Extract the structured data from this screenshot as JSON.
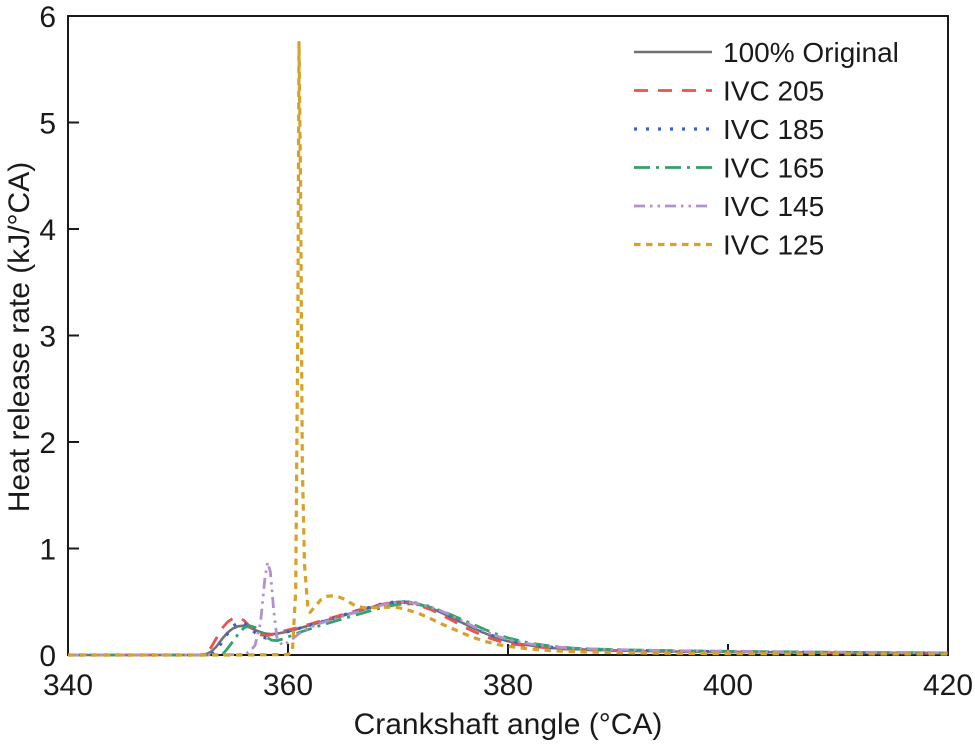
{
  "accent_colors": {
    "axis": "#1a1a1a",
    "background": "#ffffff"
  },
  "chart_data": {
    "type": "line",
    "title": "",
    "xlabel": "Crankshaft angle (°CA)",
    "ylabel": "Heat release rate (kJ/°CA)",
    "xlim": [
      340,
      420
    ],
    "ylim": [
      0,
      6
    ],
    "xticks": [
      340,
      360,
      380,
      400,
      420
    ],
    "yticks": [
      0,
      1,
      2,
      3,
      4,
      5,
      6
    ],
    "grid": false,
    "legend_position": "upper right",
    "series": [
      {
        "name": "100% Original",
        "color": "#6e7176",
        "style": "solid",
        "points": [
          [
            340,
            0
          ],
          [
            346,
            0
          ],
          [
            350,
            0
          ],
          [
            352,
            0
          ],
          [
            352.6,
            0.01
          ],
          [
            353,
            0.03
          ],
          [
            353.5,
            0.08
          ],
          [
            354,
            0.15
          ],
          [
            354.5,
            0.21
          ],
          [
            355,
            0.25
          ],
          [
            355.5,
            0.27
          ],
          [
            356,
            0.275
          ],
          [
            356.5,
            0.26
          ],
          [
            357,
            0.235
          ],
          [
            357.5,
            0.215
          ],
          [
            358,
            0.2
          ],
          [
            358.5,
            0.195
          ],
          [
            359,
            0.2
          ],
          [
            359.5,
            0.21
          ],
          [
            360,
            0.22
          ],
          [
            361,
            0.25
          ],
          [
            362,
            0.28
          ],
          [
            363,
            0.31
          ],
          [
            364,
            0.34
          ],
          [
            365,
            0.37
          ],
          [
            366,
            0.4
          ],
          [
            367,
            0.43
          ],
          [
            368,
            0.46
          ],
          [
            369,
            0.48
          ],
          [
            370,
            0.5
          ],
          [
            371,
            0.5
          ],
          [
            372,
            0.475
          ],
          [
            373,
            0.44
          ],
          [
            374,
            0.395
          ],
          [
            375,
            0.345
          ],
          [
            376,
            0.295
          ],
          [
            377,
            0.245
          ],
          [
            378,
            0.2
          ],
          [
            379,
            0.16
          ],
          [
            380,
            0.13
          ],
          [
            381,
            0.105
          ],
          [
            382,
            0.09
          ],
          [
            383,
            0.075
          ],
          [
            384,
            0.065
          ],
          [
            385,
            0.06
          ],
          [
            386,
            0.055
          ],
          [
            388,
            0.048
          ],
          [
            390,
            0.042
          ],
          [
            392,
            0.038
          ],
          [
            395,
            0.033
          ],
          [
            398,
            0.03
          ],
          [
            400,
            0.03
          ],
          [
            404,
            0.026
          ],
          [
            408,
            0.023
          ],
          [
            412,
            0.021
          ],
          [
            416,
            0.02
          ],
          [
            420,
            0.018
          ]
        ]
      },
      {
        "name": "IVC 205",
        "color": "#e8544e",
        "style": "dashed",
        "points": [
          [
            340,
            0
          ],
          [
            346,
            0
          ],
          [
            350,
            0
          ],
          [
            352,
            0
          ],
          [
            352.5,
            0.02
          ],
          [
            353,
            0.07
          ],
          [
            353.5,
            0.16
          ],
          [
            354,
            0.25
          ],
          [
            354.5,
            0.31
          ],
          [
            355,
            0.345
          ],
          [
            355.5,
            0.35
          ],
          [
            356,
            0.325
          ],
          [
            356.5,
            0.27
          ],
          [
            357,
            0.22
          ],
          [
            357.5,
            0.19
          ],
          [
            358,
            0.18
          ],
          [
            358.5,
            0.19
          ],
          [
            359,
            0.21
          ],
          [
            360,
            0.235
          ],
          [
            361,
            0.26
          ],
          [
            362,
            0.29
          ],
          [
            363,
            0.32
          ],
          [
            364,
            0.35
          ],
          [
            365,
            0.38
          ],
          [
            366,
            0.41
          ],
          [
            367,
            0.44
          ],
          [
            368,
            0.465
          ],
          [
            369,
            0.485
          ],
          [
            370,
            0.495
          ],
          [
            371,
            0.487
          ],
          [
            372,
            0.462
          ],
          [
            373,
            0.425
          ],
          [
            374,
            0.375
          ],
          [
            375,
            0.32
          ],
          [
            376,
            0.265
          ],
          [
            377,
            0.215
          ],
          [
            378,
            0.17
          ],
          [
            379,
            0.135
          ],
          [
            380,
            0.11
          ],
          [
            382,
            0.082
          ],
          [
            384,
            0.063
          ],
          [
            386,
            0.052
          ],
          [
            388,
            0.046
          ],
          [
            390,
            0.04
          ],
          [
            395,
            0.032
          ],
          [
            400,
            0.028
          ],
          [
            405,
            0.024
          ],
          [
            410,
            0.021
          ],
          [
            415,
            0.018
          ],
          [
            420,
            0.016
          ]
        ]
      },
      {
        "name": "IVC 185",
        "color": "#3e62c3",
        "style": "dotted",
        "points": [
          [
            340,
            0
          ],
          [
            347,
            0
          ],
          [
            351,
            0
          ],
          [
            353,
            0
          ],
          [
            353.5,
            0.05
          ],
          [
            354,
            0.12
          ],
          [
            354.5,
            0.2
          ],
          [
            355,
            0.27
          ],
          [
            355.5,
            0.305
          ],
          [
            356,
            0.3
          ],
          [
            356.5,
            0.26
          ],
          [
            357,
            0.21
          ],
          [
            357.5,
            0.175
          ],
          [
            358,
            0.16
          ],
          [
            358.5,
            0.17
          ],
          [
            359,
            0.19
          ],
          [
            360,
            0.22
          ],
          [
            361,
            0.25
          ],
          [
            362,
            0.28
          ],
          [
            363,
            0.31
          ],
          [
            364,
            0.34
          ],
          [
            365,
            0.375
          ],
          [
            366,
            0.405
          ],
          [
            367,
            0.435
          ],
          [
            368,
            0.465
          ],
          [
            369,
            0.49
          ],
          [
            370,
            0.5
          ],
          [
            371,
            0.5
          ],
          [
            372,
            0.48
          ],
          [
            373,
            0.45
          ],
          [
            374,
            0.4
          ],
          [
            375,
            0.35
          ],
          [
            376,
            0.3
          ],
          [
            377,
            0.25
          ],
          [
            378,
            0.205
          ],
          [
            379,
            0.165
          ],
          [
            380,
            0.135
          ],
          [
            382,
            0.096
          ],
          [
            384,
            0.072
          ],
          [
            386,
            0.058
          ],
          [
            388,
            0.05
          ],
          [
            390,
            0.045
          ],
          [
            395,
            0.035
          ],
          [
            400,
            0.03
          ],
          [
            405,
            0.026
          ],
          [
            410,
            0.022
          ],
          [
            415,
            0.02
          ],
          [
            420,
            0.018
          ]
        ]
      },
      {
        "name": "IVC 165",
        "color": "#2fa36a",
        "style": "dashdot",
        "points": [
          [
            340,
            0
          ],
          [
            348,
            0
          ],
          [
            352,
            0
          ],
          [
            354,
            0
          ],
          [
            354.5,
            0.06
          ],
          [
            355,
            0.13
          ],
          [
            355.5,
            0.2
          ],
          [
            356,
            0.255
          ],
          [
            356.5,
            0.275
          ],
          [
            357,
            0.26
          ],
          [
            357.5,
            0.22
          ],
          [
            358,
            0.17
          ],
          [
            358.5,
            0.14
          ],
          [
            359,
            0.135
          ],
          [
            359.5,
            0.15
          ],
          [
            360,
            0.17
          ],
          [
            361,
            0.21
          ],
          [
            362,
            0.245
          ],
          [
            363,
            0.28
          ],
          [
            364,
            0.31
          ],
          [
            365,
            0.34
          ],
          [
            366,
            0.37
          ],
          [
            367,
            0.4
          ],
          [
            368,
            0.43
          ],
          [
            369,
            0.455
          ],
          [
            370,
            0.475
          ],
          [
            371,
            0.48
          ],
          [
            372,
            0.47
          ],
          [
            373,
            0.447
          ],
          [
            374,
            0.412
          ],
          [
            375,
            0.37
          ],
          [
            376,
            0.325
          ],
          [
            377,
            0.28
          ],
          [
            378,
            0.235
          ],
          [
            379,
            0.195
          ],
          [
            380,
            0.16
          ],
          [
            382,
            0.112
          ],
          [
            384,
            0.082
          ],
          [
            386,
            0.065
          ],
          [
            388,
            0.056
          ],
          [
            390,
            0.05
          ],
          [
            395,
            0.04
          ],
          [
            400,
            0.035
          ],
          [
            405,
            0.03
          ],
          [
            410,
            0.026
          ],
          [
            415,
            0.022
          ],
          [
            420,
            0.02
          ]
        ]
      },
      {
        "name": "IVC 145",
        "color": "#b191cf",
        "style": "dashdotdot",
        "points": [
          [
            340,
            0
          ],
          [
            348,
            0
          ],
          [
            353,
            0
          ],
          [
            356,
            0.005
          ],
          [
            356.5,
            0.03
          ],
          [
            357,
            0.09
          ],
          [
            357.5,
            0.3
          ],
          [
            357.9,
            0.72
          ],
          [
            358.15,
            0.87
          ],
          [
            358.4,
            0.78
          ],
          [
            358.7,
            0.42
          ],
          [
            359,
            0.16
          ],
          [
            359.5,
            0.09
          ],
          [
            360,
            0.12
          ],
          [
            360.5,
            0.16
          ],
          [
            361,
            0.2
          ],
          [
            362,
            0.26
          ],
          [
            363,
            0.3
          ],
          [
            364,
            0.33
          ],
          [
            365,
            0.365
          ],
          [
            366,
            0.395
          ],
          [
            367,
            0.425
          ],
          [
            368,
            0.455
          ],
          [
            369,
            0.48
          ],
          [
            370,
            0.495
          ],
          [
            371,
            0.495
          ],
          [
            372,
            0.478
          ],
          [
            373,
            0.45
          ],
          [
            374,
            0.41
          ],
          [
            375,
            0.362
          ],
          [
            376,
            0.312
          ],
          [
            377,
            0.262
          ],
          [
            378,
            0.217
          ],
          [
            379,
            0.177
          ],
          [
            380,
            0.145
          ],
          [
            382,
            0.103
          ],
          [
            384,
            0.078
          ],
          [
            386,
            0.063
          ],
          [
            388,
            0.056
          ],
          [
            390,
            0.05
          ],
          [
            395,
            0.04
          ],
          [
            400,
            0.036
          ],
          [
            405,
            0.031
          ],
          [
            410,
            0.027
          ],
          [
            415,
            0.024
          ],
          [
            420,
            0.021
          ]
        ]
      },
      {
        "name": "IVC 125",
        "color": "#d6a229",
        "style": "densedash",
        "points": [
          [
            340,
            0
          ],
          [
            350,
            0
          ],
          [
            356,
            0
          ],
          [
            360,
            0.005
          ],
          [
            360.4,
            0.03
          ],
          [
            360.7,
            0.6
          ],
          [
            360.9,
            3.2
          ],
          [
            361,
            5.75
          ],
          [
            361.15,
            4.4
          ],
          [
            361.3,
            1.8
          ],
          [
            361.5,
            0.85
          ],
          [
            361.8,
            0.45
          ],
          [
            362,
            0.4
          ],
          [
            362.5,
            0.46
          ],
          [
            363,
            0.52
          ],
          [
            363.5,
            0.55
          ],
          [
            364,
            0.555
          ],
          [
            364.5,
            0.55
          ],
          [
            365,
            0.53
          ],
          [
            365.5,
            0.5
          ],
          [
            366,
            0.47
          ],
          [
            366.5,
            0.452
          ],
          [
            367,
            0.443
          ],
          [
            368,
            0.445
          ],
          [
            369,
            0.45
          ],
          [
            370,
            0.445
          ],
          [
            371,
            0.42
          ],
          [
            372,
            0.385
          ],
          [
            373,
            0.34
          ],
          [
            374,
            0.29
          ],
          [
            375,
            0.245
          ],
          [
            376,
            0.2
          ],
          [
            377,
            0.16
          ],
          [
            378,
            0.125
          ],
          [
            379,
            0.1
          ],
          [
            380,
            0.082
          ],
          [
            382,
            0.056
          ],
          [
            384,
            0.04
          ],
          [
            386,
            0.031
          ],
          [
            388,
            0.026
          ],
          [
            390,
            0.022
          ],
          [
            395,
            0.016
          ],
          [
            400,
            0.013
          ],
          [
            405,
            0.011
          ],
          [
            410,
            0.01
          ],
          [
            415,
            0.009
          ],
          [
            420,
            0.008
          ]
        ]
      }
    ]
  }
}
